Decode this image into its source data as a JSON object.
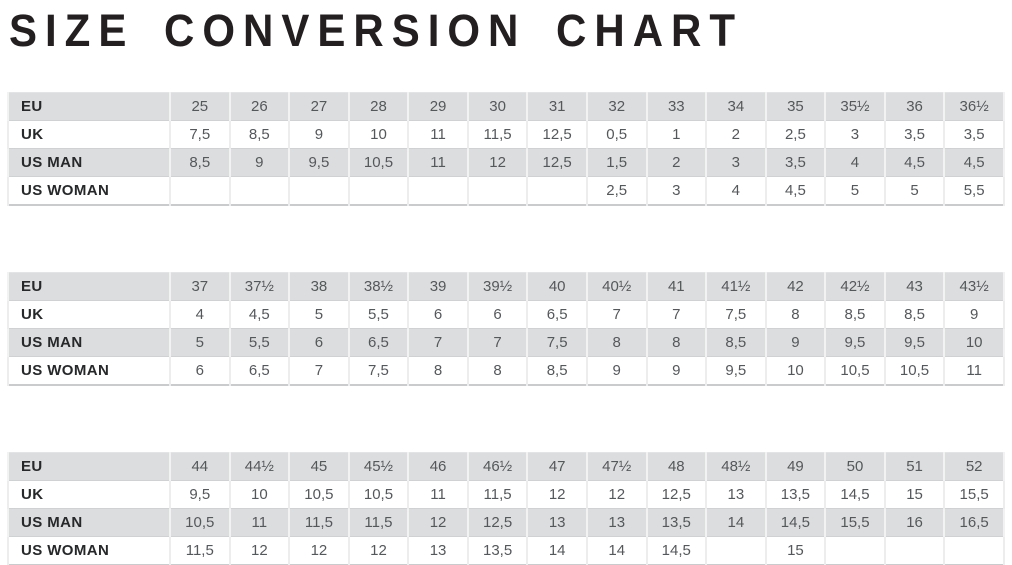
{
  "page": {
    "title": "SIZE CONVERSION CHART"
  },
  "colors": {
    "title_text": "#231f20",
    "label_text": "#26282a",
    "value_text": "#55585b",
    "row_shaded_bg": "#dcddde",
    "row_plain_bg": "#ffffff",
    "grid_vertical": "#ededee",
    "grid_horizontal": "#cfd1d3",
    "table_bottom_border": "#c9cbcd"
  },
  "chart_data": {
    "type": "table",
    "title": "SIZE CONVERSION CHART",
    "row_labels": [
      "EU",
      "UK",
      "US MAN",
      "US WOMAN"
    ],
    "tables": [
      {
        "rows": [
          {
            "label": "EU",
            "cells": [
              "25",
              "26",
              "27",
              "28",
              "29",
              "30",
              "31",
              "32",
              "33",
              "34",
              "35",
              "35½",
              "36",
              "36½"
            ]
          },
          {
            "label": "UK",
            "cells": [
              "7,5",
              "8,5",
              "9",
              "10",
              "11",
              "11,5",
              "12,5",
              "0,5",
              "1",
              "2",
              "2,5",
              "3",
              "3,5",
              "3,5"
            ]
          },
          {
            "label": "US MAN",
            "cells": [
              "8,5",
              "9",
              "9,5",
              "10,5",
              "11",
              "12",
              "12,5",
              "1,5",
              "2",
              "3",
              "3,5",
              "4",
              "4,5",
              "4,5"
            ]
          },
          {
            "label": "US WOMAN",
            "cells": [
              "",
              "",
              "",
              "",
              "",
              "",
              "",
              "2,5",
              "3",
              "4",
              "4,5",
              "5",
              "5",
              "5,5"
            ]
          }
        ]
      },
      {
        "rows": [
          {
            "label": "EU",
            "cells": [
              "37",
              "37½",
              "38",
              "38½",
              "39",
              "39½",
              "40",
              "40½",
              "41",
              "41½",
              "42",
              "42½",
              "43",
              "43½"
            ]
          },
          {
            "label": "UK",
            "cells": [
              "4",
              "4,5",
              "5",
              "5,5",
              "6",
              "6",
              "6,5",
              "7",
              "7",
              "7,5",
              "8",
              "8,5",
              "8,5",
              "9"
            ]
          },
          {
            "label": "US MAN",
            "cells": [
              "5",
              "5,5",
              "6",
              "6,5",
              "7",
              "7",
              "7,5",
              "8",
              "8",
              "8,5",
              "9",
              "9,5",
              "9,5",
              "10"
            ]
          },
          {
            "label": "US WOMAN",
            "cells": [
              "6",
              "6,5",
              "7",
              "7,5",
              "8",
              "8",
              "8,5",
              "9",
              "9",
              "9,5",
              "10",
              "10,5",
              "10,5",
              "11"
            ]
          }
        ]
      },
      {
        "rows": [
          {
            "label": "EU",
            "cells": [
              "44",
              "44½",
              "45",
              "45½",
              "46",
              "46½",
              "47",
              "47½",
              "48",
              "48½",
              "49",
              "50",
              "51",
              "52"
            ]
          },
          {
            "label": "UK",
            "cells": [
              "9,5",
              "10",
              "10,5",
              "10,5",
              "11",
              "11,5",
              "12",
              "12",
              "12,5",
              "13",
              "13,5",
              "14,5",
              "15",
              "15,5"
            ]
          },
          {
            "label": "US MAN",
            "cells": [
              "10,5",
              "11",
              "11,5",
              "11,5",
              "12",
              "12,5",
              "13",
              "13",
              "13,5",
              "14",
              "14,5",
              "15,5",
              "16",
              "16,5"
            ]
          },
          {
            "label": "US WOMAN",
            "cells": [
              "11,5",
              "12",
              "12",
              "12",
              "13",
              "13,5",
              "14",
              "14",
              "14,5",
              "",
              "15",
              "",
              "",
              ""
            ]
          }
        ]
      }
    ]
  }
}
